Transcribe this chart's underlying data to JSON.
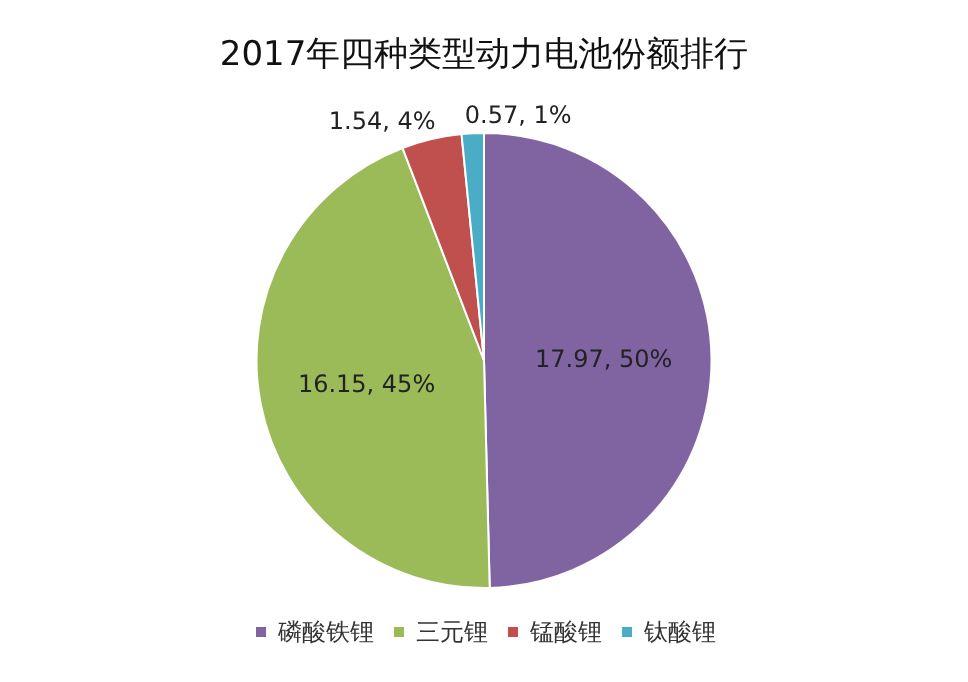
{
  "chart_data": {
    "type": "pie",
    "title": "2017年四种类型动力电池份额排行",
    "categories": [
      "磷酸铁锂",
      "三元锂",
      "锰酸锂",
      "钛酸锂"
    ],
    "values": [
      17.97,
      16.15,
      1.54,
      0.57
    ],
    "value_labels": [
      "17.97, 50%",
      "16.15, 45%",
      "1.54, 4%",
      "0.57, 1%"
    ],
    "colors": [
      "#8064a2",
      "#9bbb59",
      "#c0504d",
      "#4bacc6"
    ],
    "legend": "bottom"
  }
}
